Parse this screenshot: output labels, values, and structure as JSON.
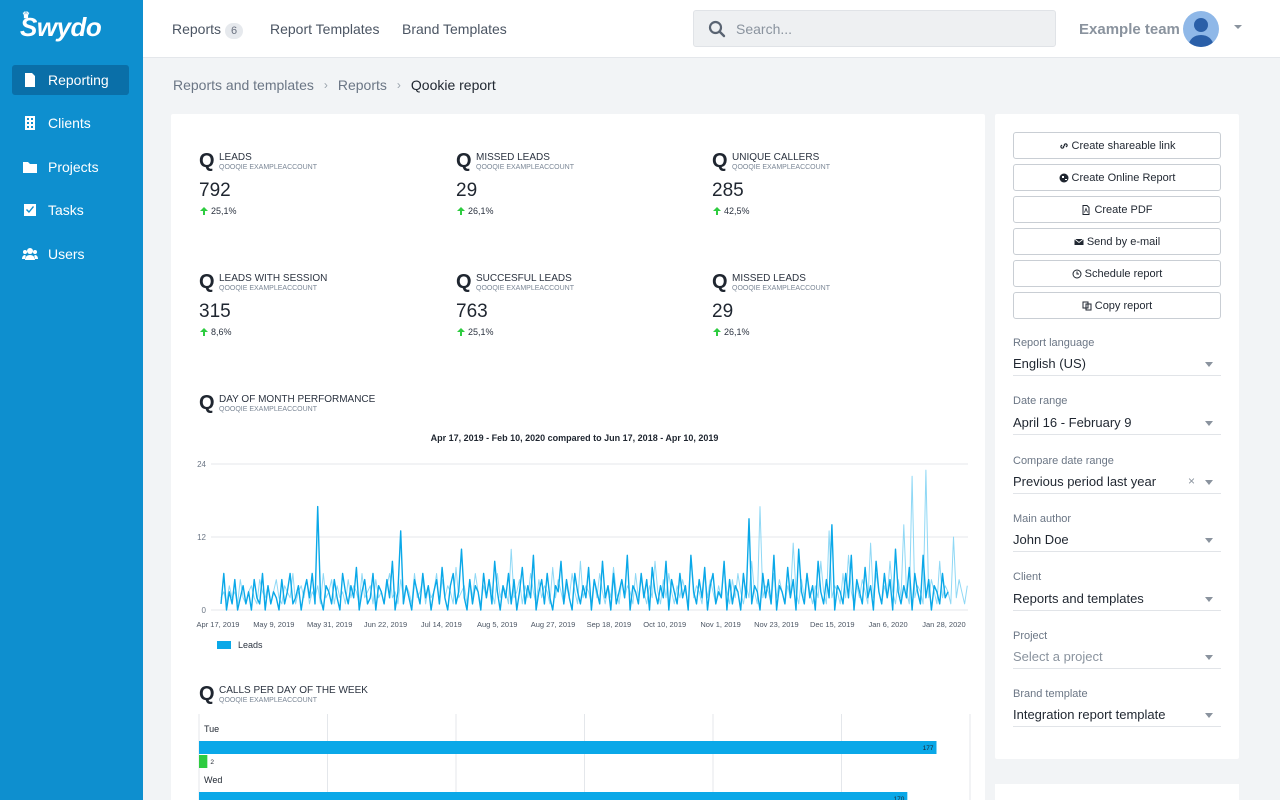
{
  "app": {
    "logo_text": "Swydo"
  },
  "sidebar": {
    "items": [
      {
        "label": "Reporting",
        "icon": "file-icon",
        "active": true
      },
      {
        "label": "Clients",
        "icon": "building-icon",
        "active": false
      },
      {
        "label": "Projects",
        "icon": "folder-icon",
        "active": false
      },
      {
        "label": "Tasks",
        "icon": "checkbox-icon",
        "active": false
      },
      {
        "label": "Users",
        "icon": "users-icon",
        "active": false
      }
    ]
  },
  "topbar": {
    "tabs": [
      {
        "label": "Reports",
        "count": "6"
      },
      {
        "label": "Report Templates"
      },
      {
        "label": "Brand Templates"
      }
    ],
    "search_placeholder": "Search...",
    "team_name": "Example team"
  },
  "breadcrumb": {
    "items": [
      "Reports and templates",
      "Reports"
    ],
    "current": "Qookie report"
  },
  "kpis": [
    {
      "title": "LEADS",
      "subtitle": "QOOQIE EXAMPLEACCOUNT",
      "value": "792",
      "delta": "25,1%"
    },
    {
      "title": "MISSED LEADS",
      "subtitle": "QOOQIE EXAMPLEACCOUNT",
      "value": "29",
      "delta": "26,1%"
    },
    {
      "title": "UNIQUE CALLERS",
      "subtitle": "QOOQIE EXAMPLEACCOUNT",
      "value": "285",
      "delta": "42,5%"
    },
    {
      "title": "LEADS WITH SESSION",
      "subtitle": "QOOQIE EXAMPLEACCOUNT",
      "value": "315",
      "delta": "8,6%"
    },
    {
      "title": "SUCCESFUL LEADS",
      "subtitle": "QOOQIE EXAMPLEACCOUNT",
      "value": "763",
      "delta": "25,1%"
    },
    {
      "title": "MISSED LEADS",
      "subtitle": "QOOQIE EXAMPLEACCOUNT",
      "value": "29",
      "delta": "26,1%"
    }
  ],
  "kpi_logo_glyph": "Q",
  "line_widget": {
    "title": "DAY OF MONTH PERFORMANCE",
    "subtitle": "QOOQIE EXAMPLEACCOUNT"
  },
  "bar_widget": {
    "title": "CALLS PER DAY OF THE WEEK",
    "subtitle": "QOOQIE EXAMPLEACCOUNT"
  },
  "chart_data": [
    {
      "type": "line",
      "title": "Apr 17, 2019 - Feb 10, 2020 compared to Jun 17, 2018 - Apr 10, 2019",
      "ylim": [
        0,
        24
      ],
      "y_ticks": [
        "24",
        "12",
        "0"
      ],
      "x_tick_labels": [
        "Apr 17, 2019",
        "May 9, 2019",
        "May 31, 2019",
        "Jun 22, 2019",
        "Jul 14, 2019",
        "Aug 5, 2019",
        "Aug 27, 2019",
        "Sep 18, 2019",
        "Oct 10, 2019",
        "Nov 1, 2019",
        "Nov 23, 2019",
        "Dec 15, 2019",
        "Jan 6, 2020",
        "Jan 28, 2020"
      ],
      "grid": true,
      "legend_position": "bottom-left",
      "series": [
        {
          "name": "Leads",
          "color": "#0aa8e8",
          "values": [
            1,
            6,
            0,
            3,
            1,
            5,
            0,
            2,
            4,
            1,
            3,
            0,
            5,
            2,
            1,
            6,
            0,
            4,
            1,
            3,
            2,
            0,
            5,
            1,
            3,
            6,
            1,
            2,
            4,
            0,
            3,
            5,
            2,
            6,
            1,
            17,
            2,
            0,
            4,
            3,
            1,
            5,
            2,
            0,
            6,
            3,
            1,
            4,
            2,
            7,
            0,
            3,
            5,
            1,
            2,
            6,
            0,
            4,
            3,
            1,
            5,
            2,
            8,
            0,
            3,
            13,
            1,
            4,
            2,
            0,
            5,
            3,
            1,
            6,
            2,
            4,
            0,
            3,
            5,
            1,
            7,
            2,
            0,
            4,
            6,
            1,
            3,
            10,
            2,
            0,
            5,
            1,
            4,
            3,
            0,
            6,
            2,
            5,
            1,
            8,
            3,
            0,
            4,
            2,
            6,
            1,
            5,
            0,
            3,
            7,
            1,
            4,
            2,
            9,
            0,
            3,
            5,
            1,
            6,
            2,
            0,
            4,
            3,
            8,
            1,
            5,
            2,
            0,
            6,
            3,
            1,
            4,
            2,
            7,
            0,
            5,
            3,
            1,
            8,
            2,
            4,
            0,
            6,
            1,
            3,
            5,
            2,
            9,
            0,
            4,
            3,
            1,
            6,
            2,
            5,
            0,
            7,
            3,
            1,
            4,
            2,
            8,
            0,
            5,
            3,
            1,
            6,
            2,
            4,
            0,
            9,
            3,
            1,
            5,
            2,
            7,
            0,
            4,
            6,
            1,
            3,
            2,
            8,
            0,
            5,
            1,
            4,
            3,
            0,
            6,
            2,
            15,
            1,
            4,
            3,
            0,
            6,
            2,
            5,
            1,
            9,
            0,
            4,
            3,
            1,
            7,
            2,
            5,
            0,
            10,
            3,
            1,
            6,
            2,
            4,
            0,
            8,
            3,
            1,
            5,
            2,
            14,
            0,
            4,
            3,
            1,
            6,
            2,
            9,
            0,
            5,
            3,
            1,
            7,
            2,
            4,
            0,
            8,
            3,
            1,
            6,
            2,
            5,
            0,
            10,
            3,
            1,
            4,
            2,
            7,
            0,
            6,
            3,
            1,
            9,
            2,
            5,
            0,
            4,
            3,
            1,
            6,
            2,
            3
          ]
        },
        {
          "name": "",
          "color": "#8fd8f5",
          "values": [
            2,
            3,
            1,
            4,
            2,
            3,
            1,
            5,
            2,
            1,
            3,
            4,
            2,
            1,
            5,
            3,
            2,
            4,
            1,
            3,
            5,
            2,
            1,
            4,
            3,
            2,
            6,
            1,
            3,
            4,
            2,
            5,
            1,
            3,
            2,
            4,
            1,
            6,
            2,
            3,
            5,
            1,
            4,
            2,
            3,
            1,
            5,
            2,
            4,
            3,
            1,
            6,
            2,
            3,
            4,
            1,
            5,
            2,
            3,
            1,
            4,
            6,
            2,
            3,
            1,
            5,
            2,
            4,
            3,
            1,
            6,
            2,
            3,
            5,
            1,
            4,
            2,
            3,
            6,
            1,
            5,
            2,
            4,
            3,
            1,
            7,
            2,
            3,
            4,
            1,
            5,
            2,
            6,
            3,
            1,
            4,
            2,
            5,
            3,
            1,
            6,
            2,
            4,
            3,
            1,
            10,
            2,
            3,
            5,
            1,
            4,
            2,
            6,
            3,
            1,
            5,
            2,
            4,
            3,
            1,
            7,
            2,
            5,
            3,
            1,
            4,
            2,
            6,
            3,
            1,
            8,
            2,
            4,
            3,
            1,
            5,
            2,
            6,
            3,
            1,
            4,
            2,
            7,
            3,
            1,
            5,
            2,
            4,
            3,
            1,
            6,
            2,
            5,
            3,
            1,
            4,
            2,
            8,
            3,
            1,
            5,
            2,
            6,
            3,
            1,
            4,
            2,
            5,
            3,
            1,
            9,
            2,
            4,
            3,
            1,
            6,
            2,
            5,
            3,
            1,
            4,
            2,
            7,
            3,
            1,
            5,
            2,
            6,
            3,
            1,
            4,
            2,
            8,
            3,
            1,
            17,
            2,
            4,
            3,
            1,
            6,
            2,
            5,
            3,
            1,
            4,
            2,
            11,
            3,
            1,
            5,
            2,
            6,
            3,
            1,
            4,
            2,
            8,
            3,
            1,
            13,
            2,
            4,
            3,
            1,
            6,
            2,
            9,
            3,
            1,
            4,
            2,
            5,
            3,
            1,
            11,
            2,
            6,
            3,
            1,
            4,
            2,
            8,
            3,
            1,
            5,
            2,
            14,
            3,
            1,
            22,
            2,
            4,
            3,
            1,
            23,
            2,
            5,
            3,
            1,
            8,
            2,
            4,
            3,
            1,
            12,
            2,
            5,
            3,
            1,
            4
          ]
        }
      ]
    },
    {
      "type": "bar",
      "orientation": "horizontal",
      "categories": [
        "Tue",
        "Wed"
      ],
      "series": [
        {
          "name": "",
          "color": "#0aa8e8",
          "values": [
            177,
            170
          ]
        },
        {
          "name": "",
          "color": "#2ecc40",
          "values": [
            2,
            null
          ]
        }
      ],
      "xlim": [
        0,
        180
      ]
    }
  ],
  "right_panel": {
    "actions": [
      {
        "label": "Create shareable link",
        "icon": "link-icon"
      },
      {
        "label": "Create Online Report",
        "icon": "globe-icon"
      },
      {
        "label": "Create PDF",
        "icon": "pdf-icon"
      },
      {
        "label": "Send by e-mail",
        "icon": "envelope-icon"
      },
      {
        "label": "Schedule report",
        "icon": "clock-icon"
      },
      {
        "label": "Copy report",
        "icon": "copy-icon"
      }
    ],
    "fields": [
      {
        "label": "Report language",
        "value": "English (US)"
      },
      {
        "label": "Date range",
        "value": "April 16 - February 9"
      },
      {
        "label": "Compare date range",
        "value": "Previous period last year",
        "clearable": true,
        "clear_glyph": "×"
      },
      {
        "label": "Main author",
        "value": "John Doe"
      },
      {
        "label": "Client",
        "value": "Reports and templates"
      },
      {
        "label": "Project",
        "value": "Select a project",
        "placeholder": true
      },
      {
        "label": "Brand template",
        "value": "Integration report template"
      }
    ]
  },
  "colors": {
    "sidebar": "#0e8fcf",
    "accent": "#0aa8e8",
    "positive": "#2ecc40"
  }
}
